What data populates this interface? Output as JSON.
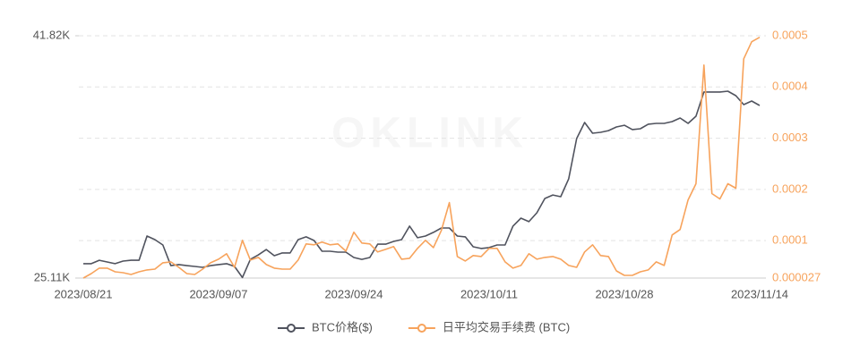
{
  "chart_data": {
    "type": "line",
    "watermark": "OKLINK",
    "categories": [
      "2023/08/21",
      null,
      null,
      null,
      null,
      null,
      null,
      null,
      null,
      null,
      null,
      null,
      null,
      null,
      null,
      null,
      null,
      "2023/09/07",
      null,
      null,
      null,
      null,
      null,
      null,
      null,
      null,
      null,
      null,
      null,
      null,
      null,
      null,
      null,
      null,
      "2023/09/24",
      null,
      null,
      null,
      null,
      null,
      null,
      null,
      null,
      null,
      null,
      null,
      null,
      null,
      null,
      null,
      null,
      "2023/10/11",
      null,
      null,
      null,
      null,
      null,
      null,
      null,
      null,
      null,
      null,
      null,
      null,
      null,
      null,
      null,
      null,
      "2023/10/28",
      null,
      null,
      null,
      null,
      null,
      null,
      null,
      null,
      null,
      null,
      null,
      null,
      null,
      null,
      null,
      null,
      "2023/11/14"
    ],
    "ylim": [
      25110,
      41820
    ],
    "yticks": [
      {
        "value": 25110,
        "label": "25.11K"
      },
      {
        "value": 41820,
        "label": "41.82K"
      }
    ],
    "y2lim": [
      2.7e-05,
      0.0005
    ],
    "y2ticks": [
      2.7e-05,
      0.0001,
      0.0002,
      0.0003,
      0.0004,
      0.0005
    ],
    "grid": true,
    "legend": "bottom",
    "series": [
      {
        "name": "BTC价格($)",
        "color": "#50535e",
        "axis": "y",
        "values": [
          26100,
          26100,
          26340,
          26220,
          26100,
          26280,
          26340,
          26340,
          28010,
          27760,
          27390,
          25970,
          26040,
          25970,
          25910,
          25850,
          25970,
          26040,
          26100,
          25910,
          25150,
          26400,
          26710,
          27080,
          26650,
          26840,
          26840,
          27760,
          27950,
          27700,
          26960,
          26960,
          26900,
          26900,
          26530,
          26400,
          26530,
          27450,
          27450,
          27640,
          27760,
          28690,
          27890,
          28010,
          28260,
          28560,
          28560,
          28010,
          27950,
          27270,
          27150,
          27210,
          27390,
          27390,
          28690,
          29240,
          29000,
          29610,
          30600,
          30840,
          30720,
          31950,
          34730,
          35840,
          35100,
          35160,
          35280,
          35530,
          35650,
          35350,
          35410,
          35720,
          35780,
          35780,
          35900,
          36150,
          35780,
          36270,
          37940,
          37940,
          37940,
          38000,
          37690,
          37070,
          37320,
          37010
        ]
      },
      {
        "name": "日平均交易手续费 (BTC)",
        "color": "#f7a35c",
        "axis": "y2",
        "values": [
          2.7e-05,
          3.58e-05,
          4.63e-05,
          4.63e-05,
          3.93e-05,
          3.75e-05,
          3.4e-05,
          3.93e-05,
          4.28e-05,
          4.45e-05,
          5.68e-05,
          5.86e-05,
          4.8e-05,
          3.58e-05,
          3.4e-05,
          4.45e-05,
          5.68e-05,
          6.38e-05,
          7.44e-05,
          4.8e-05,
          0.0001007,
          6.21e-05,
          6.73e-05,
          5.33e-05,
          4.63e-05,
          4.45e-05,
          4.45e-05,
          6.21e-05,
          9.37e-05,
          9.19e-05,
          9.72e-05,
          9.19e-05,
          9.37e-05,
          7.96e-05,
          0.0001165,
          9.54e-05,
          9.37e-05,
          7.79e-05,
          8.31e-05,
          8.84e-05,
          6.38e-05,
          6.56e-05,
          8.49e-05,
          0.0001007,
          8.66e-05,
          0.00012,
          0.0001743,
          6.91e-05,
          6.03e-05,
          7.09e-05,
          6.91e-05,
          8.49e-05,
          8.49e-05,
          5.86e-05,
          4.63e-05,
          5.16e-05,
          7.44e-05,
          6.38e-05,
          6.73e-05,
          6.91e-05,
          6.38e-05,
          5.16e-05,
          4.8e-05,
          7.79e-05,
          9.19e-05,
          7.09e-05,
          6.91e-05,
          4.1e-05,
          3.23e-05,
          3.23e-05,
          3.93e-05,
          4.28e-05,
          5.86e-05,
          5.16e-05,
          0.0001112,
          0.0001217,
          0.0001796,
          0.0002112,
          0.0004427,
          0.0001919,
          0.0001814,
          0.0002112,
          0.0002024,
          0.000455,
          0.0004883,
          0.000497
        ]
      }
    ]
  }
}
